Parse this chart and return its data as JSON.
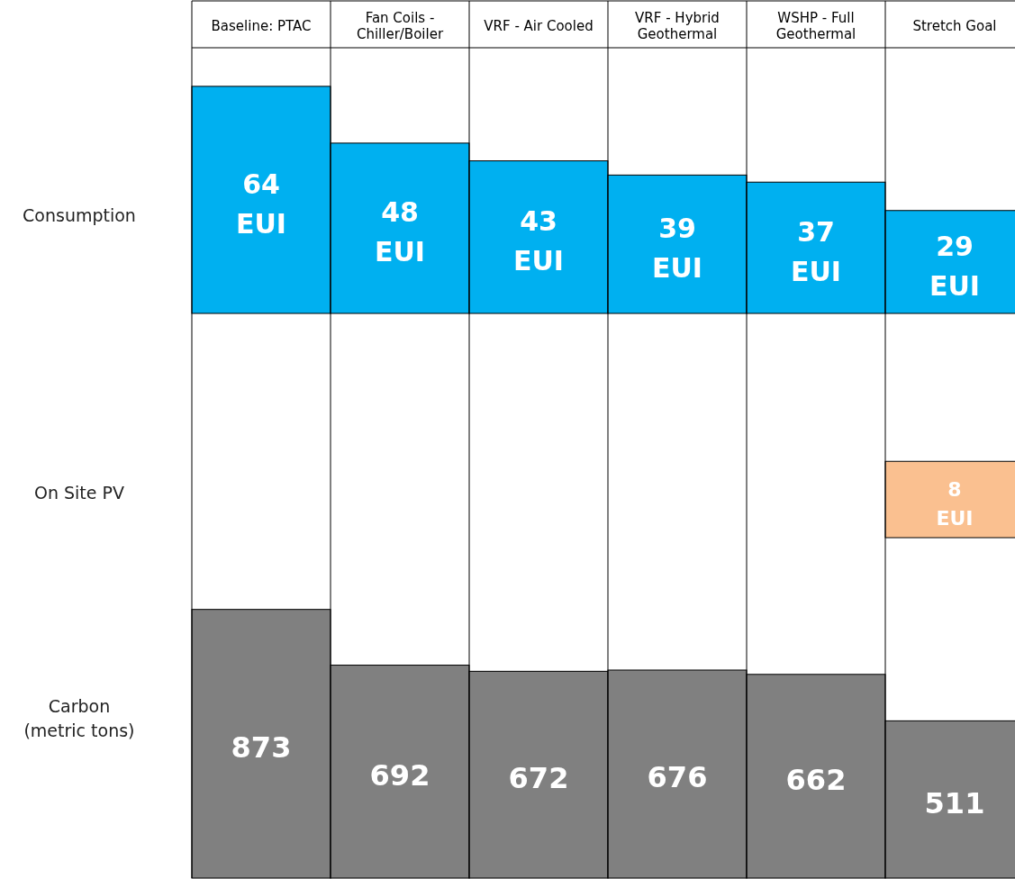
{
  "chart_data": [
    {
      "type": "bar",
      "ylabel": "Consumption",
      "categories": [
        "Baseline: PTAC",
        "Fan Coils -\nChiller/Boiler",
        "VRF - Air Cooled",
        "VRF - Hybrid\nGeothermal",
        "WSHP - Full\nGeothermal",
        "Stretch Goal"
      ],
      "values": [
        64,
        48,
        43,
        39,
        37,
        29
      ],
      "value_labels": [
        "64\nEUI",
        "48\nEUI",
        "43\nEUI",
        "39\nEUI",
        "37\nEUI",
        "29\nEUI"
      ],
      "color": "#00b0f0"
    },
    {
      "type": "bar",
      "ylabel": "On Site PV",
      "categories": [
        null,
        null,
        null,
        null,
        null,
        null
      ],
      "values": [
        null,
        null,
        null,
        null,
        null,
        8
      ],
      "value_labels": [
        null,
        null,
        null,
        null,
        null,
        "8\nEUI"
      ],
      "color": "#fac090"
    },
    {
      "type": "bar",
      "ylabel": "Carbon\n(metric tons)",
      "categories": [
        null,
        null,
        null,
        null,
        null,
        null
      ],
      "values": [
        873,
        692,
        672,
        676,
        662,
        511
      ],
      "data_labels": true,
      "color": "#808080"
    }
  ]
}
